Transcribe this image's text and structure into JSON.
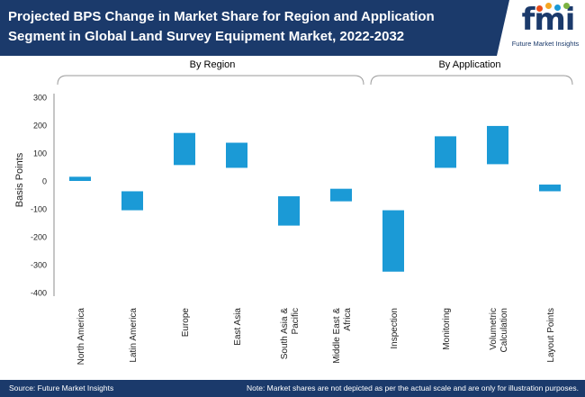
{
  "header": {
    "title": "Projected BPS Change in Market Share for Region and Application Segment in Global Land Survey Equipment Market, 2022-2032"
  },
  "logo": {
    "mark": "fmi",
    "subtitle": "Future Market Insights"
  },
  "colors": {
    "header_bg": "#1b3a6b",
    "bar": "#1b9ad6",
    "bracket": "#9a9a9a",
    "axis": "#8c8c8c",
    "logo_dots": [
      "#e94e1b",
      "#f5a623",
      "#1b9ad6",
      "#7cb342"
    ]
  },
  "chart_data": {
    "type": "bar",
    "subtype": "floating-waterfall",
    "ylabel": "Basis Points",
    "ylim": [
      -400,
      300
    ],
    "yticks": [
      300,
      200,
      100,
      0,
      -100,
      -200,
      -300,
      -400
    ],
    "groups": [
      {
        "name": "By Region",
        "start": 0,
        "end": 5
      },
      {
        "name": "By Application",
        "start": 6,
        "end": 9
      }
    ],
    "categories": [
      "North America",
      "Latin America",
      "Europe",
      "East Asia",
      "South Asia & Pacific",
      "Middle East & Africa",
      "Inspection",
      "Monitoring",
      "Volumetric Calculation",
      "Layout Points"
    ],
    "category_lines": [
      [
        "North America"
      ],
      [
        "Latin America"
      ],
      [
        "Europe"
      ],
      [
        "East Asia"
      ],
      [
        "South Asia &",
        "Pacific"
      ],
      [
        "Middle East &",
        "Africa"
      ],
      [
        "Inspection"
      ],
      [
        "Monitoring"
      ],
      [
        "Volumetric",
        "Calculation"
      ],
      [
        "Layout Points"
      ]
    ],
    "ranges": [
      [
        0,
        15
      ],
      [
        -105,
        -37
      ],
      [
        57,
        172
      ],
      [
        47,
        137
      ],
      [
        -160,
        -55
      ],
      [
        -73,
        -28
      ],
      [
        -325,
        -105
      ],
      [
        47,
        160
      ],
      [
        60,
        197
      ],
      [
        -37,
        -13
      ]
    ]
  },
  "footer": {
    "source": "Source: Future Market Insights",
    "note": "Note: Market shares are not depicted as per the actual scale and are only for illustration purposes."
  }
}
